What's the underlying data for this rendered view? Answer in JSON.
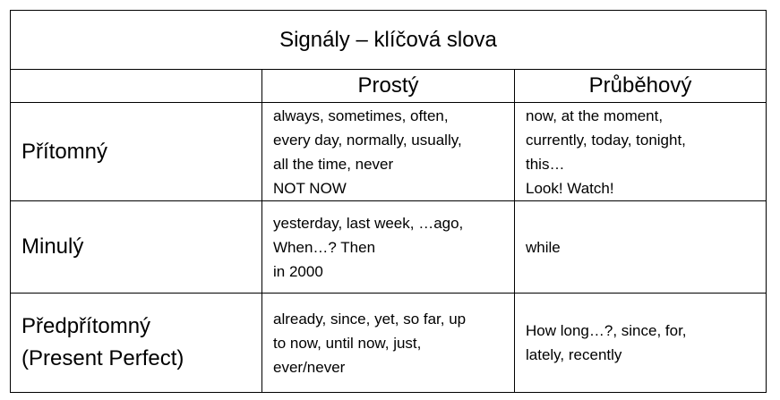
{
  "table": {
    "title": "Signály – klíčová slova",
    "header": [
      "Prostý",
      "Průběhový"
    ],
    "rows": [
      {
        "label": [
          "Přítomný"
        ],
        "simple": [
          "always, sometimes, often,",
          "every day, normally, usually,",
          "all the time, never",
          "NOT NOW"
        ],
        "progressive": [
          "now, at the moment,",
          "currently, today, tonight,",
          "this…",
          "Look! Watch!"
        ]
      },
      {
        "label": [
          "Minulý"
        ],
        "simple": [
          "yesterday, last week, …ago,",
          "When…? Then",
          "in 2000"
        ],
        "progressive": [
          "while"
        ]
      },
      {
        "label": [
          "Předpřítomný",
          "(Present Perfect)"
        ],
        "simple": [
          "already, since, yet, so far, up",
          "to now, until now, just,",
          "ever/never"
        ],
        "progressive": [
          "How long…?, since, for,",
          "lately, recently"
        ]
      }
    ]
  }
}
